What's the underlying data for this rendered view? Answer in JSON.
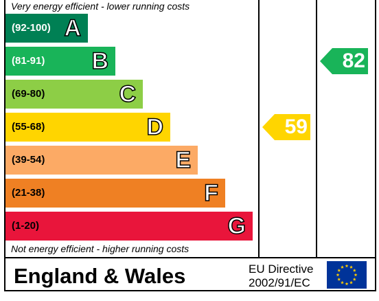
{
  "chart_data": {
    "type": "bar",
    "top_caption": "Very energy efficient - lower running costs",
    "bottom_caption": "Not energy efficient - higher running costs",
    "bands": [
      {
        "range": "(92-100)",
        "letter": "A",
        "color": "#008054",
        "text_color": "#ffffff"
      },
      {
        "range": "(81-91)",
        "letter": "B",
        "color": "#19b459",
        "text_color": "#ffffff"
      },
      {
        "range": "(69-80)",
        "letter": "C",
        "color": "#8dce46",
        "text_color": "#000000"
      },
      {
        "range": "(55-68)",
        "letter": "D",
        "color": "#ffd500",
        "text_color": "#000000"
      },
      {
        "range": "(39-54)",
        "letter": "E",
        "color": "#fcaa65",
        "text_color": "#000000"
      },
      {
        "range": "(21-38)",
        "letter": "F",
        "color": "#ef8023",
        "text_color": "#000000"
      },
      {
        "range": "(1-20)",
        "letter": "G",
        "color": "#e9153b",
        "text_color": "#000000"
      }
    ],
    "current": {
      "value": 59,
      "band": "D",
      "color": "#ffd500"
    },
    "potential": {
      "value": 82,
      "band": "B",
      "color": "#19b459"
    }
  },
  "footer": {
    "region": "England & Wales",
    "directive_line1": "EU Directive",
    "directive_line2": "2002/91/EC"
  },
  "icons": {
    "flag": "eu-flag-icon"
  }
}
